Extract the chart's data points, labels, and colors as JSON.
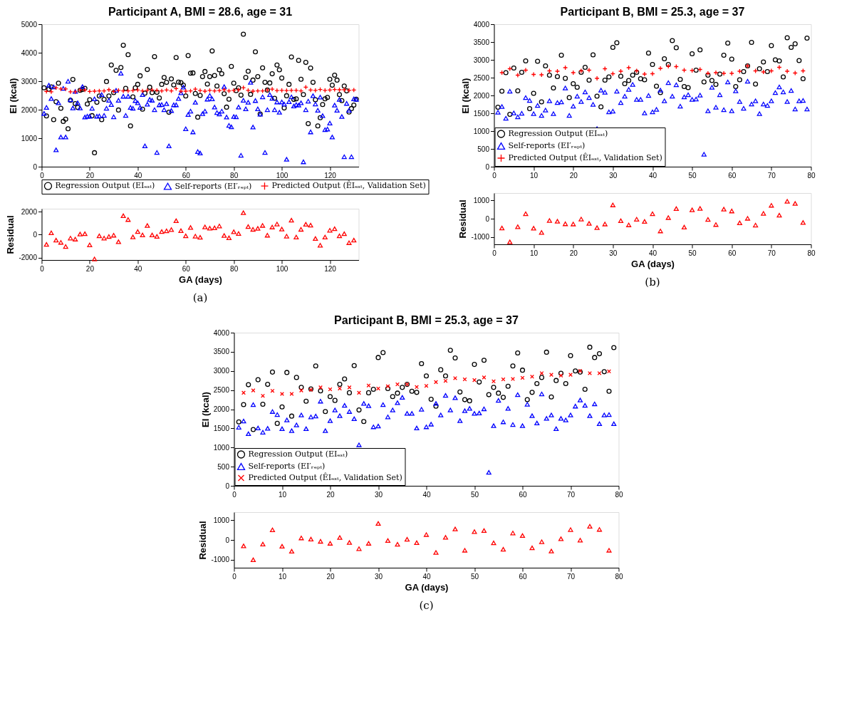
{
  "chart_data": [
    {
      "type": "scatter",
      "title": "Participant A, BMI = 28.6, age = 31",
      "ylabel": "EI (kcal)",
      "xlim": [
        0,
        132
      ],
      "xticks": [
        0,
        20,
        40,
        60,
        80,
        100,
        120
      ],
      "ylim": [
        0,
        5000
      ],
      "yticks": [
        0,
        1000,
        2000,
        3000,
        4000,
        5000
      ],
      "grid": false,
      "legend": "bottom",
      "series": [
        {
          "name": "Regression Output (EIₑₛₜ)",
          "color": "#000000",
          "marker": "circle",
          "x": [
            1,
            2,
            3,
            4,
            5,
            6,
            7,
            8,
            9,
            10,
            11,
            12,
            13,
            14,
            15,
            16,
            17,
            18,
            19,
            20,
            21,
            22,
            23,
            24,
            25,
            26,
            27,
            28,
            29,
            30,
            31,
            32,
            33,
            34,
            35,
            36,
            37,
            38,
            39,
            40,
            41,
            42,
            43,
            44,
            45,
            46,
            47,
            48,
            49,
            50,
            51,
            52,
            53,
            54,
            55,
            56,
            57,
            58,
            59,
            60,
            61,
            62,
            63,
            64,
            65,
            66,
            67,
            68,
            69,
            70,
            71,
            72,
            73,
            74,
            75,
            76,
            77,
            78,
            79,
            80,
            81,
            82,
            83,
            84,
            85,
            86,
            87,
            88,
            89,
            90,
            91,
            92,
            93,
            94,
            95,
            96,
            97,
            98,
            99,
            100,
            101,
            102,
            103,
            104,
            105,
            106,
            107,
            108,
            109,
            110,
            111,
            112,
            113,
            114,
            115,
            116,
            117,
            118,
            119,
            120,
            121,
            122,
            123,
            124,
            125,
            126,
            127,
            128,
            129,
            130,
            131
          ],
          "values": [
            2770,
            1780,
            2720,
            2800,
            1650,
            2280,
            2930,
            2050,
            1590,
            1670,
            1330,
            2330,
            3060,
            2210,
            2080,
            2680,
            2710,
            2750,
            2200,
            2350,
            1790,
            490,
            2260,
            2480,
            1650,
            2360,
            2990,
            2480,
            3570,
            2600,
            3380,
            1990,
            3480,
            4260,
            2750,
            3930,
            1430,
            2450,
            2770,
            2890,
            3190,
            2020,
            2580,
            3410,
            2790,
            2600,
            3860,
            2610,
            2410,
            2890,
            3130,
            2960,
            1910,
            3080,
            2870,
            3830,
            2970,
            2950,
            2860,
            2480,
            3900,
            3280,
            3290,
            2570,
            1740,
            2500,
            3160,
            3340,
            2900,
            3160,
            4060,
            3200,
            2830,
            3400,
            3260,
            2560,
            2090,
            2370,
            3520,
            2930,
            2670,
            2770,
            2510,
            4650,
            3130,
            3350,
            2540,
            3040,
            4030,
            3160,
            1850,
            3470,
            2960,
            2690,
            2940,
            3260,
            2400,
            3570,
            3400,
            3110,
            2060,
            2490,
            2890,
            3850,
            2360,
            2380,
            3730,
            3070,
            2530,
            3660,
            1510,
            3460,
            2960,
            2350,
            1430,
            1720,
            2180,
            2380,
            2430,
            3070,
            2860,
            3210,
            3040,
            2530,
            2320,
            2830,
            2660,
            1920,
            2040,
            2160,
            2370
          ]
        },
        {
          "name": "Self-reports (EI′ᵣₑₚₜ)",
          "color": "#0000ff",
          "marker": "triangle",
          "x": [
            1,
            2,
            3,
            4,
            5,
            6,
            7,
            8,
            9,
            10,
            11,
            12,
            13,
            14,
            15,
            16,
            17,
            18,
            19,
            20,
            21,
            22,
            23,
            24,
            25,
            26,
            27,
            28,
            29,
            30,
            31,
            32,
            33,
            34,
            35,
            36,
            37,
            38,
            39,
            40,
            41,
            42,
            43,
            44,
            45,
            46,
            47,
            48,
            49,
            50,
            51,
            52,
            53,
            54,
            55,
            56,
            57,
            58,
            59,
            60,
            61,
            62,
            63,
            64,
            65,
            66,
            67,
            68,
            69,
            70,
            71,
            72,
            73,
            74,
            75,
            76,
            77,
            78,
            79,
            80,
            81,
            82,
            83,
            84,
            85,
            86,
            87,
            88,
            89,
            90,
            91,
            92,
            93,
            94,
            95,
            96,
            97,
            98,
            99,
            100,
            101,
            102,
            103,
            104,
            105,
            106,
            107,
            108,
            109,
            110,
            111,
            112,
            113,
            114,
            115,
            116,
            117,
            118,
            119,
            120,
            121,
            122,
            123,
            124,
            125,
            126,
            127,
            128,
            129,
            130,
            131
          ],
          "values": [
            1870,
            2080,
            2860,
            2390,
            2800,
            590,
            2240,
            1040,
            2750,
            1040,
            3000,
            2350,
            2060,
            2640,
            2240,
            2060,
            2810,
            1740,
            1770,
            1770,
            2050,
            2380,
            1770,
            1780,
            2530,
            1800,
            2050,
            2330,
            2180,
            1750,
            2680,
            2330,
            3280,
            2470,
            1800,
            2470,
            2080,
            2050,
            2320,
            2240,
            2080,
            2530,
            730,
            2190,
            2360,
            2330,
            2000,
            500,
            2170,
            2180,
            2000,
            2210,
            730,
            1970,
            2170,
            2170,
            2390,
            2590,
            2790,
            1330,
            1830,
            1950,
            1220,
            2260,
            530,
            480,
            1860,
            1950,
            2370,
            2500,
            2380,
            2090,
            1900,
            1850,
            1950,
            2810,
            1740,
            1450,
            1400,
            1760,
            1750,
            2090,
            400,
            2330,
            2030,
            2260,
            2960,
            1390,
            2320,
            2030,
            1840,
            2450,
            500,
            2000,
            2530,
            2400,
            2000,
            2270,
            1910,
            2270,
            2200,
            260,
            2280,
            2450,
            2130,
            2180,
            2160,
            2240,
            170,
            2000,
            2300,
            1220,
            2490,
            2200,
            1980,
            2440,
            1790,
            1300,
            1320,
            1530,
            1040,
            2160,
            1980,
            2360,
            1760,
            350,
            2220,
            1980,
            350,
            2380,
            2360
          ]
        },
        {
          "name": "Predicted Output (ÊIₑₛₜ, Validation Set)",
          "color": "#ff0000",
          "marker": "cross",
          "x": [
            2,
            4,
            6,
            8,
            10,
            12,
            14,
            16,
            18,
            20,
            22,
            24,
            26,
            28,
            30,
            32,
            34,
            36,
            38,
            40,
            42,
            44,
            46,
            48,
            50,
            52,
            54,
            56,
            58,
            60,
            62,
            64,
            66,
            68,
            70,
            72,
            74,
            76,
            78,
            80,
            82,
            84,
            86,
            88,
            90,
            92,
            94,
            96,
            98,
            100,
            102,
            104,
            106,
            108,
            110,
            112,
            114,
            116,
            118,
            120,
            122,
            124,
            126,
            128,
            130
          ],
          "values": [
            2640,
            2630,
            2770,
            2730,
            2730,
            2630,
            2630,
            2690,
            2690,
            2640,
            2650,
            2660,
            2660,
            2700,
            2640,
            2680,
            2660,
            2660,
            2670,
            2690,
            2660,
            2680,
            2690,
            2680,
            2660,
            2690,
            2660,
            2740,
            2650,
            2650,
            2660,
            2720,
            2670,
            2650,
            2680,
            2660,
            2670,
            2700,
            2660,
            2680,
            2700,
            2770,
            2680,
            2650,
            2660,
            2660,
            2690,
            2720,
            2670,
            2680,
            2670,
            2680,
            2680,
            2660,
            2790,
            2690,
            2680,
            2710,
            2680,
            2690,
            2710,
            2700,
            2700,
            2680,
            2690
          ]
        }
      ]
    },
    {
      "type": "scatter",
      "xlabel": "GA (days)",
      "ylabel": "Residual",
      "xlim": [
        0,
        132
      ],
      "xticks": [
        0,
        20,
        40,
        60,
        80,
        100,
        120
      ],
      "ylim": [
        -2200,
        2250
      ],
      "yticks": [
        -2000,
        0,
        2000
      ],
      "grid": false,
      "annotations": [
        "(a)"
      ],
      "series": [
        {
          "color": "#ff0000",
          "marker": "triangle",
          "x": [
            2,
            4,
            6,
            8,
            10,
            12,
            14,
            16,
            18,
            20,
            22,
            24,
            26,
            28,
            30,
            32,
            34,
            36,
            38,
            40,
            42,
            44,
            46,
            48,
            50,
            52,
            54,
            56,
            58,
            60,
            62,
            64,
            66,
            68,
            70,
            72,
            74,
            76,
            78,
            80,
            82,
            84,
            86,
            88,
            90,
            92,
            94,
            96,
            98,
            100,
            102,
            104,
            106,
            108,
            110,
            112,
            114,
            116,
            118,
            120,
            122,
            124,
            126,
            128,
            130
          ],
          "values": [
            -850,
            160,
            -480,
            -670,
            -1030,
            -300,
            -390,
            50,
            80,
            -890,
            -2110,
            -110,
            -300,
            -160,
            -50,
            -620,
            1640,
            1310,
            -200,
            260,
            -30,
            790,
            -30,
            -150,
            260,
            330,
            440,
            1210,
            340,
            -110,
            620,
            -130,
            -230,
            670,
            560,
            590,
            750,
            -80,
            -280,
            250,
            100,
            1900,
            700,
            460,
            540,
            800,
            -50,
            660,
            920,
            480,
            -130,
            1250,
            -210,
            460,
            900,
            820,
            -340,
            -920,
            -210,
            380,
            510,
            -110,
            80,
            -700,
            -480
          ]
        }
      ]
    },
    {
      "type": "scatter",
      "title": "Participant B, BMI = 25.3, age = 37",
      "ylabel": "EI (kcal)",
      "xlim": [
        0,
        80
      ],
      "xticks": [
        0,
        10,
        20,
        30,
        40,
        50,
        60,
        70,
        80
      ],
      "ylim": [
        0,
        4000
      ],
      "yticks": [
        0,
        500,
        1000,
        1500,
        2000,
        2500,
        3000,
        3500,
        4000
      ],
      "grid": false,
      "legend": "bottom left",
      "series": [
        {
          "name": "Regression Output (EIₑₛₜ)",
          "color": "#000000",
          "marker": "circle",
          "x": [
            1,
            2,
            3,
            4,
            5,
            6,
            7,
            8,
            9,
            10,
            11,
            12,
            13,
            14,
            15,
            16,
            17,
            18,
            19,
            20,
            21,
            22,
            23,
            24,
            25,
            26,
            27,
            28,
            29,
            30,
            31,
            32,
            33,
            34,
            35,
            36,
            37,
            38,
            39,
            40,
            41,
            42,
            43,
            44,
            45,
            46,
            47,
            48,
            49,
            50,
            51,
            52,
            53,
            54,
            55,
            56,
            57,
            58,
            59,
            60,
            61,
            62,
            63,
            64,
            65,
            66,
            67,
            68,
            69,
            70,
            71,
            72,
            73,
            74,
            75,
            76,
            77,
            78,
            79
          ],
          "values": [
            1670,
            2120,
            2640,
            1470,
            2770,
            2130,
            2650,
            2970,
            1630,
            2060,
            2960,
            1820,
            2830,
            2570,
            2210,
            2530,
            3130,
            2480,
            1940,
            2330,
            2230,
            2650,
            2790,
            2430,
            3140,
            1980,
            1680,
            2430,
            2520,
            3350,
            3480,
            2540,
            2330,
            2420,
            2570,
            2650,
            2470,
            2440,
            3190,
            2870,
            2260,
            2080,
            3030,
            2870,
            3540,
            3340,
            2450,
            2250,
            2220,
            3170,
            2710,
            3280,
            2380,
            2570,
            2420,
            2310,
            2600,
            3130,
            3470,
            3020,
            2250,
            2440,
            2670,
            2830,
            3490,
            2320,
            2750,
            2940,
            2670,
            3400,
            3000,
            2970,
            2520,
            3620,
            3350,
            3450,
            2980,
            2470,
            3610
          ]
        },
        {
          "name": "Self-reports (EI′ᵣₑₚₜ)",
          "color": "#0000ff",
          "marker": "triangle",
          "x": [
            1,
            2,
            3,
            4,
            5,
            6,
            7,
            8,
            9,
            10,
            11,
            12,
            13,
            14,
            15,
            16,
            17,
            18,
            19,
            20,
            21,
            22,
            23,
            24,
            25,
            26,
            27,
            28,
            29,
            30,
            31,
            32,
            33,
            34,
            35,
            36,
            37,
            38,
            39,
            40,
            41,
            42,
            43,
            44,
            45,
            46,
            47,
            48,
            49,
            50,
            51,
            52,
            53,
            54,
            55,
            56,
            57,
            58,
            59,
            60,
            61,
            62,
            63,
            64,
            65,
            66,
            67,
            68,
            69,
            70,
            71,
            72,
            73,
            74,
            75,
            76,
            77,
            78,
            79
          ],
          "values": [
            1530,
            1690,
            1360,
            2120,
            1510,
            1400,
            1500,
            1940,
            1860,
            1490,
            1720,
            1440,
            1590,
            1850,
            1490,
            1800,
            1820,
            2210,
            1440,
            1700,
            1980,
            1830,
            2100,
            1940,
            1750,
            1070,
            2150,
            2090,
            1540,
            1560,
            2120,
            1800,
            1980,
            2170,
            2310,
            1890,
            1890,
            1510,
            2000,
            1540,
            1610,
            2150,
            1850,
            2360,
            1980,
            2300,
            1700,
            1960,
            2020,
            1890,
            1900,
            2010,
            350,
            1570,
            2230,
            1670,
            2020,
            1600,
            2380,
            1570,
            2130,
            1830,
            1640,
            2400,
            1760,
            1850,
            1490,
            1760,
            1720,
            1850,
            2080,
            2240,
            2100,
            1830,
            2140,
            1620,
            1850,
            1860,
            1620
          ]
        },
        {
          "name": "Predicted Output (ÊIₑₛₜ, Validation Set)",
          "color": "#ff0000",
          "marker": "cross",
          "x": [
            2,
            4,
            6,
            8,
            10,
            12,
            14,
            16,
            18,
            20,
            22,
            24,
            26,
            28,
            30,
            32,
            34,
            36,
            38,
            40,
            42,
            44,
            46,
            48,
            50,
            52,
            54,
            56,
            58,
            60,
            62,
            64,
            66,
            68,
            70,
            72,
            74,
            76,
            78
          ],
          "values": [
            2640,
            2750,
            2570,
            2710,
            2590,
            2580,
            2690,
            2680,
            2780,
            2640,
            2690,
            2710,
            2480,
            2750,
            2610,
            2680,
            2780,
            2690,
            2600,
            2610,
            2760,
            2820,
            2810,
            2710,
            2700,
            2730,
            2620,
            2640,
            2620,
            2620,
            2680,
            2830,
            2690,
            2660,
            2690,
            2790,
            2680,
            2630,
            2690
          ]
        }
      ]
    },
    {
      "type": "scatter",
      "xlabel": "GA (days)",
      "ylabel": "Residual",
      "xlim": [
        0,
        80
      ],
      "xticks": [
        0,
        10,
        20,
        30,
        40,
        50,
        60,
        70,
        80
      ],
      "ylim": [
        -1400,
        1400
      ],
      "yticks": [
        -1000,
        0,
        1000
      ],
      "grid": false,
      "annotations": [
        "(b)"
      ],
      "series": [
        {
          "color": "#ff0000",
          "marker": "triangle",
          "x": [
            2,
            4,
            6,
            8,
            10,
            12,
            14,
            16,
            18,
            20,
            22,
            24,
            26,
            28,
            30,
            32,
            34,
            36,
            38,
            40,
            42,
            44,
            46,
            48,
            50,
            52,
            54,
            56,
            58,
            60,
            62,
            64,
            66,
            68,
            70,
            72,
            74,
            76,
            78
          ],
          "values": [
            -510,
            -1270,
            -440,
            270,
            -520,
            -750,
            -100,
            -140,
            -280,
            -290,
            -20,
            -260,
            -490,
            -290,
            750,
            -110,
            -340,
            -30,
            -150,
            270,
            -670,
            60,
            550,
            -460,
            480,
            560,
            -40,
            -320,
            520,
            420,
            -230,
            20,
            -350,
            290,
            730,
            190,
            950,
            830,
            -210
          ]
        }
      ]
    },
    {
      "type": "scatter",
      "title": "Participant B, BMI = 25.3, age = 37",
      "ylabel": "EI (kcal)",
      "xlim": [
        0,
        80
      ],
      "xticks": [
        0,
        10,
        20,
        30,
        40,
        50,
        60,
        70,
        80
      ],
      "ylim": [
        0,
        4000
      ],
      "yticks": [
        0,
        500,
        1000,
        1500,
        2000,
        2500,
        3000,
        3500,
        4000
      ],
      "grid": false,
      "legend": "bottom left",
      "series": [
        {
          "name": "Regression Output (EIₑₛₜ)",
          "color": "#000000",
          "marker": "circle",
          "x": [
            1,
            2,
            3,
            4,
            5,
            6,
            7,
            8,
            9,
            10,
            11,
            12,
            13,
            14,
            15,
            16,
            17,
            18,
            19,
            20,
            21,
            22,
            23,
            24,
            25,
            26,
            27,
            28,
            29,
            30,
            31,
            32,
            33,
            34,
            35,
            36,
            37,
            38,
            39,
            40,
            41,
            42,
            43,
            44,
            45,
            46,
            47,
            48,
            49,
            50,
            51,
            52,
            53,
            54,
            55,
            56,
            57,
            58,
            59,
            60,
            61,
            62,
            63,
            64,
            65,
            66,
            67,
            68,
            69,
            70,
            71,
            72,
            73,
            74,
            75,
            76,
            77,
            78,
            79
          ],
          "values": [
            1670,
            2120,
            2640,
            1470,
            2770,
            2130,
            2650,
            2970,
            1630,
            2060,
            2960,
            1820,
            2830,
            2570,
            2210,
            2530,
            3130,
            2480,
            1940,
            2330,
            2230,
            2650,
            2790,
            2430,
            3140,
            1980,
            1680,
            2430,
            2520,
            3350,
            3480,
            2540,
            2330,
            2420,
            2570,
            2650,
            2470,
            2440,
            3190,
            2870,
            2260,
            2080,
            3030,
            2870,
            3540,
            3340,
            2450,
            2250,
            2220,
            3170,
            2710,
            3280,
            2380,
            2570,
            2420,
            2310,
            2600,
            3130,
            3470,
            3020,
            2250,
            2440,
            2670,
            2830,
            3490,
            2320,
            2750,
            2940,
            2670,
            3400,
            3000,
            2970,
            2520,
            3620,
            3350,
            3450,
            2980,
            2470,
            3610
          ]
        },
        {
          "name": "Self-reports (EI′ᵣₑₚₜ)",
          "color": "#0000ff",
          "marker": "triangle",
          "x": [
            1,
            2,
            3,
            4,
            5,
            6,
            7,
            8,
            9,
            10,
            11,
            12,
            13,
            14,
            15,
            16,
            17,
            18,
            19,
            20,
            21,
            22,
            23,
            24,
            25,
            26,
            27,
            28,
            29,
            30,
            31,
            32,
            33,
            34,
            35,
            36,
            37,
            38,
            39,
            40,
            41,
            42,
            43,
            44,
            45,
            46,
            47,
            48,
            49,
            50,
            51,
            52,
            53,
            54,
            55,
            56,
            57,
            58,
            59,
            60,
            61,
            62,
            63,
            64,
            65,
            66,
            67,
            68,
            69,
            70,
            71,
            72,
            73,
            74,
            75,
            76,
            77,
            78,
            79
          ],
          "values": [
            1530,
            1690,
            1360,
            2120,
            1510,
            1400,
            1500,
            1940,
            1860,
            1490,
            1720,
            1440,
            1590,
            1850,
            1490,
            1800,
            1820,
            2210,
            1440,
            1700,
            1980,
            1830,
            2100,
            1940,
            1750,
            1070,
            2150,
            2090,
            1540,
            1560,
            2120,
            1800,
            1980,
            2170,
            2310,
            1890,
            1890,
            1510,
            2000,
            1540,
            1610,
            2150,
            1850,
            2360,
            1980,
            2300,
            1700,
            1960,
            2020,
            1890,
            1900,
            2010,
            350,
            1570,
            2230,
            1670,
            2020,
            1600,
            2380,
            1570,
            2130,
            1830,
            1640,
            2400,
            1760,
            1850,
            1490,
            1760,
            1720,
            1850,
            2080,
            2240,
            2100,
            1830,
            2140,
            1620,
            1850,
            1860,
            1620
          ]
        },
        {
          "name": "Predicted Output (ÊIₑₛₜ, Validation Set)",
          "color": "#ff0000",
          "marker": "x",
          "x": [
            2,
            4,
            6,
            8,
            10,
            12,
            14,
            16,
            18,
            20,
            22,
            24,
            26,
            28,
            30,
            32,
            34,
            36,
            38,
            40,
            42,
            44,
            46,
            48,
            50,
            52,
            54,
            56,
            58,
            60,
            62,
            64,
            66,
            68,
            70,
            72,
            74,
            76,
            78
          ],
          "values": [
            2430,
            2490,
            2350,
            2480,
            2400,
            2400,
            2490,
            2510,
            2570,
            2520,
            2540,
            2570,
            2430,
            2620,
            2540,
            2600,
            2650,
            2650,
            2580,
            2610,
            2710,
            2740,
            2810,
            2780,
            2760,
            2830,
            2730,
            2780,
            2790,
            2820,
            2850,
            2940,
            2900,
            2880,
            2900,
            3000,
            2940,
            2940,
            2990
          ]
        }
      ]
    },
    {
      "type": "scatter",
      "xlabel": "GA (days)",
      "ylabel": "Residual",
      "xlim": [
        0,
        80
      ],
      "xticks": [
        0,
        10,
        20,
        30,
        40,
        50,
        60,
        70,
        80
      ],
      "ylim": [
        -1400,
        1400
      ],
      "yticks": [
        -1000,
        0,
        1000
      ],
      "grid": false,
      "annotations": [
        "(c)"
      ],
      "series": [
        {
          "color": "#ff0000",
          "marker": "triangle",
          "x": [
            2,
            4,
            6,
            8,
            10,
            12,
            14,
            16,
            18,
            20,
            22,
            24,
            26,
            28,
            30,
            32,
            34,
            36,
            38,
            40,
            42,
            44,
            46,
            48,
            50,
            52,
            54,
            56,
            58,
            60,
            62,
            64,
            66,
            68,
            70,
            72,
            74,
            76,
            78
          ],
          "values": [
            -300,
            -1000,
            -210,
            510,
            -320,
            -570,
            100,
            40,
            -70,
            -170,
            120,
            -130,
            -440,
            -170,
            830,
            -30,
            -220,
            30,
            -140,
            270,
            -630,
            130,
            550,
            -520,
            420,
            470,
            -150,
            -470,
            350,
            220,
            -400,
            -90,
            -560,
            60,
            520,
            -10,
            690,
            530,
            -520
          ]
        }
      ]
    }
  ]
}
